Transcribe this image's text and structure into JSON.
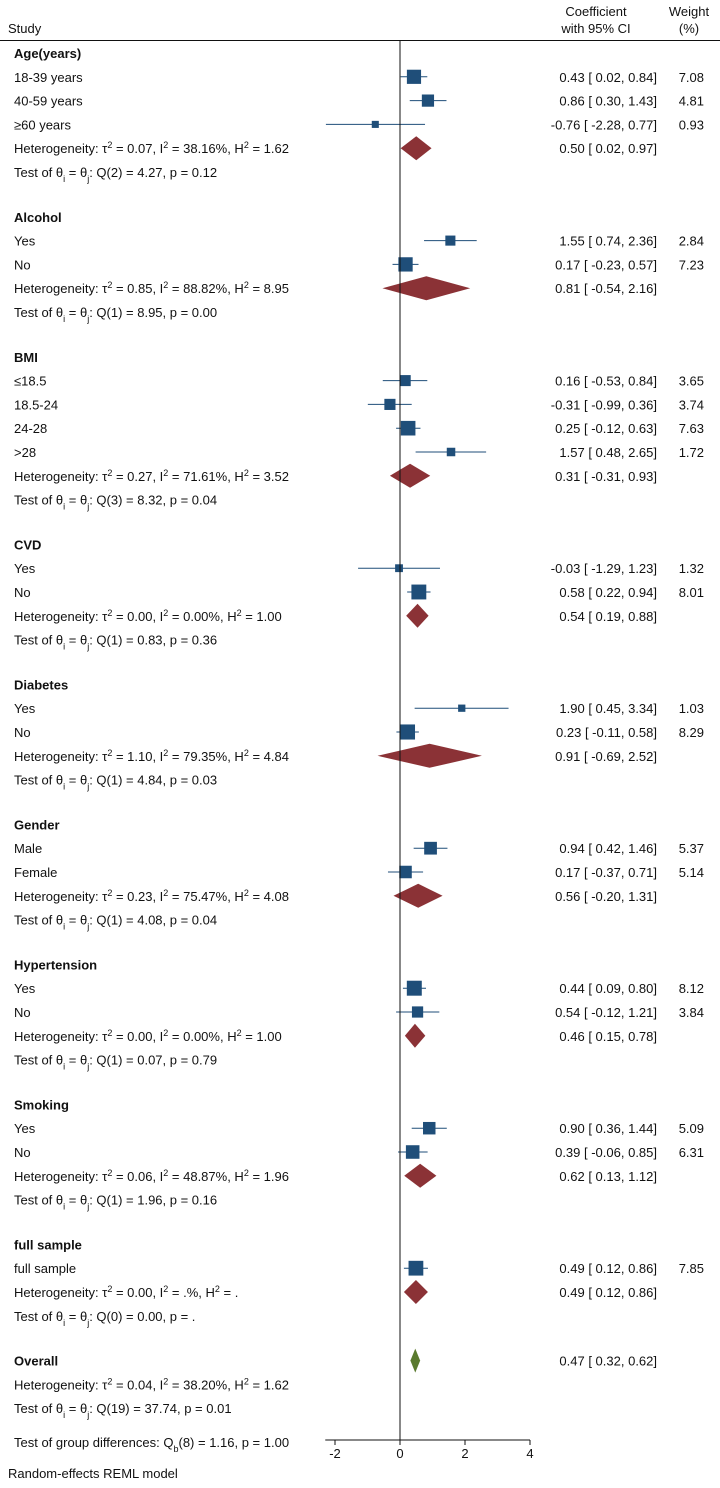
{
  "chart_data": {
    "type": "forest",
    "header": {
      "study": "Study",
      "coef_line1": "Coefficient",
      "coef_line2": "with 95% CI",
      "weight_line1": "Weight",
      "weight_line2": "(%)"
    },
    "xlim": [
      -2.3,
      4
    ],
    "xticks": [
      -2,
      0,
      2,
      4
    ],
    "colors": {
      "study": "#1f4e79",
      "subgroup": "#8b3236",
      "overall": "#5a7a2e",
      "line": "#1f4e79"
    },
    "groups": [
      {
        "name": "Age(years)",
        "studies": [
          {
            "label": "18-39 years",
            "est": 0.43,
            "lo": 0.02,
            "hi": 0.84,
            "ci_text": "0.43 [  0.02,  0.84]",
            "weight": "7.08",
            "w": 7.08
          },
          {
            "label": "40-59 years",
            "est": 0.86,
            "lo": 0.3,
            "hi": 1.43,
            "ci_text": "0.86 [  0.30,  1.43]",
            "weight": "4.81",
            "w": 4.81
          },
          {
            "label": "≥60 years",
            "est": -0.76,
            "lo": -2.28,
            "hi": 0.77,
            "ci_text": "-0.76 [ -2.28,  0.77]",
            "weight": "0.93",
            "w": 0.93
          }
        ],
        "heterogeneity": "Heterogeneity: τ² = 0.07, I² = 38.16%, H² = 1.62",
        "pooled": {
          "est": 0.5,
          "lo": 0.02,
          "hi": 0.97,
          "ci_text": "0.50 [  0.02,  0.97]"
        },
        "test": "Test of θᵢ = θⱼ: Q(2) = 4.27, p = 0.12"
      },
      {
        "name": "Alcohol",
        "studies": [
          {
            "label": "Yes",
            "est": 1.55,
            "lo": 0.74,
            "hi": 2.36,
            "ci_text": "1.55 [  0.74,  2.36]",
            "weight": "2.84",
            "w": 2.84
          },
          {
            "label": "No",
            "est": 0.17,
            "lo": -0.23,
            "hi": 0.57,
            "ci_text": "0.17 [ -0.23,  0.57]",
            "weight": "7.23",
            "w": 7.23
          }
        ],
        "heterogeneity": "Heterogeneity: τ² = 0.85, I² = 88.82%, H² = 8.95",
        "pooled": {
          "est": 0.81,
          "lo": -0.54,
          "hi": 2.16,
          "ci_text": "0.81 [ -0.54,  2.16]"
        },
        "test": "Test of θᵢ = θⱼ: Q(1) = 8.95, p = 0.00"
      },
      {
        "name": "BMI",
        "studies": [
          {
            "label": "≤18.5",
            "est": 0.16,
            "lo": -0.53,
            "hi": 0.84,
            "ci_text": "0.16 [ -0.53,  0.84]",
            "weight": "3.65",
            "w": 3.65
          },
          {
            "label": "18.5-24",
            "est": -0.31,
            "lo": -0.99,
            "hi": 0.36,
            "ci_text": "-0.31 [ -0.99,  0.36]",
            "weight": "3.74",
            "w": 3.74
          },
          {
            "label": "24-28",
            "est": 0.25,
            "lo": -0.12,
            "hi": 0.63,
            "ci_text": "0.25 [ -0.12,  0.63]",
            "weight": "7.63",
            "w": 7.63
          },
          {
            "label": ">28",
            "est": 1.57,
            "lo": 0.48,
            "hi": 2.65,
            "ci_text": "1.57 [  0.48,  2.65]",
            "weight": "1.72",
            "w": 1.72
          }
        ],
        "heterogeneity": "Heterogeneity: τ² = 0.27, I² = 71.61%, H² = 3.52",
        "pooled": {
          "est": 0.31,
          "lo": -0.31,
          "hi": 0.93,
          "ci_text": "0.31 [ -0.31,  0.93]"
        },
        "test": "Test of θᵢ = θⱼ: Q(3) = 8.32, p = 0.04"
      },
      {
        "name": "CVD",
        "studies": [
          {
            "label": "Yes",
            "est": -0.03,
            "lo": -1.29,
            "hi": 1.23,
            "ci_text": "-0.03 [ -1.29,  1.23]",
            "weight": "1.32",
            "w": 1.32
          },
          {
            "label": "No",
            "est": 0.58,
            "lo": 0.22,
            "hi": 0.94,
            "ci_text": "0.58 [  0.22,  0.94]",
            "weight": "8.01",
            "w": 8.01
          }
        ],
        "heterogeneity": "Heterogeneity: τ² = 0.00, I² = 0.00%, H² = 1.00",
        "pooled": {
          "est": 0.54,
          "lo": 0.19,
          "hi": 0.88,
          "ci_text": "0.54 [  0.19,  0.88]"
        },
        "test": "Test of θᵢ = θⱼ: Q(1) = 0.83, p = 0.36"
      },
      {
        "name": "Diabetes",
        "studies": [
          {
            "label": "Yes",
            "est": 1.9,
            "lo": 0.45,
            "hi": 3.34,
            "ci_text": "1.90 [  0.45,  3.34]",
            "weight": "1.03",
            "w": 1.03
          },
          {
            "label": "No",
            "est": 0.23,
            "lo": -0.11,
            "hi": 0.58,
            "ci_text": "0.23 [ -0.11,  0.58]",
            "weight": "8.29",
            "w": 8.29
          }
        ],
        "heterogeneity": "Heterogeneity: τ² = 1.10, I² = 79.35%, H² = 4.84",
        "pooled": {
          "est": 0.91,
          "lo": -0.69,
          "hi": 2.52,
          "ci_text": "0.91 [ -0.69,  2.52]"
        },
        "test": "Test of θᵢ = θⱼ: Q(1) = 4.84, p = 0.03"
      },
      {
        "name": "Gender",
        "studies": [
          {
            "label": "Male",
            "est": 0.94,
            "lo": 0.42,
            "hi": 1.46,
            "ci_text": "0.94 [  0.42,  1.46]",
            "weight": "5.37",
            "w": 5.37
          },
          {
            "label": "Female",
            "est": 0.17,
            "lo": -0.37,
            "hi": 0.71,
            "ci_text": "0.17 [ -0.37,  0.71]",
            "weight": "5.14",
            "w": 5.14
          }
        ],
        "heterogeneity": "Heterogeneity: τ² = 0.23, I² = 75.47%, H² = 4.08",
        "pooled": {
          "est": 0.56,
          "lo": -0.2,
          "hi": 1.31,
          "ci_text": "0.56 [ -0.20,  1.31]"
        },
        "test": "Test of θᵢ = θⱼ: Q(1) = 4.08, p = 0.04"
      },
      {
        "name": "Hypertension",
        "studies": [
          {
            "label": "Yes",
            "est": 0.44,
            "lo": 0.09,
            "hi": 0.8,
            "ci_text": "0.44 [  0.09,  0.80]",
            "weight": "8.12",
            "w": 8.12
          },
          {
            "label": "No",
            "est": 0.54,
            "lo": -0.12,
            "hi": 1.21,
            "ci_text": "0.54 [ -0.12,  1.21]",
            "weight": "3.84",
            "w": 3.84
          }
        ],
        "heterogeneity": "Heterogeneity: τ² = 0.00, I² = 0.00%, H² = 1.00",
        "pooled": {
          "est": 0.46,
          "lo": 0.15,
          "hi": 0.78,
          "ci_text": "0.46 [  0.15,  0.78]"
        },
        "test": "Test of θᵢ = θⱼ: Q(1) = 0.07, p = 0.79"
      },
      {
        "name": "Smoking",
        "studies": [
          {
            "label": "Yes",
            "est": 0.9,
            "lo": 0.36,
            "hi": 1.44,
            "ci_text": "0.90 [  0.36,  1.44]",
            "weight": "5.09",
            "w": 5.09
          },
          {
            "label": "No",
            "est": 0.39,
            "lo": -0.06,
            "hi": 0.85,
            "ci_text": "0.39 [ -0.06,  0.85]",
            "weight": "6.31",
            "w": 6.31
          }
        ],
        "heterogeneity": "Heterogeneity: τ² = 0.06, I² = 48.87%, H² = 1.96",
        "pooled": {
          "est": 0.62,
          "lo": 0.13,
          "hi": 1.12,
          "ci_text": "0.62 [  0.13,  1.12]"
        },
        "test": "Test of θᵢ = θⱼ: Q(1) = 1.96, p = 0.16"
      },
      {
        "name": "full sample",
        "studies": [
          {
            "label": "full sample",
            "est": 0.49,
            "lo": 0.12,
            "hi": 0.86,
            "ci_text": "0.49 [  0.12,  0.86]",
            "weight": "7.85",
            "w": 7.85
          }
        ],
        "heterogeneity": "Heterogeneity: τ² = 0.00, I² = .%, H² = .",
        "pooled": {
          "est": 0.49,
          "lo": 0.12,
          "hi": 0.86,
          "ci_text": "0.49 [  0.12,  0.86]"
        },
        "test": "Test of θᵢ = θⱼ: Q(0) = 0.00, p = ."
      }
    ],
    "overall": {
      "name": "Overall",
      "est": 0.47,
      "lo": 0.32,
      "hi": 0.62,
      "ci_text": "0.47 [  0.32,  0.62]",
      "heterogeneity": "Heterogeneity: τ² = 0.04, I² = 38.20%, H² = 1.62",
      "test": "Test of θᵢ = θⱼ: Q(19) = 37.74, p = 0.01"
    },
    "group_diff": "Test of group differences: Q_b(8) = 1.16, p = 1.00",
    "model_note": "Random-effects REML model"
  }
}
